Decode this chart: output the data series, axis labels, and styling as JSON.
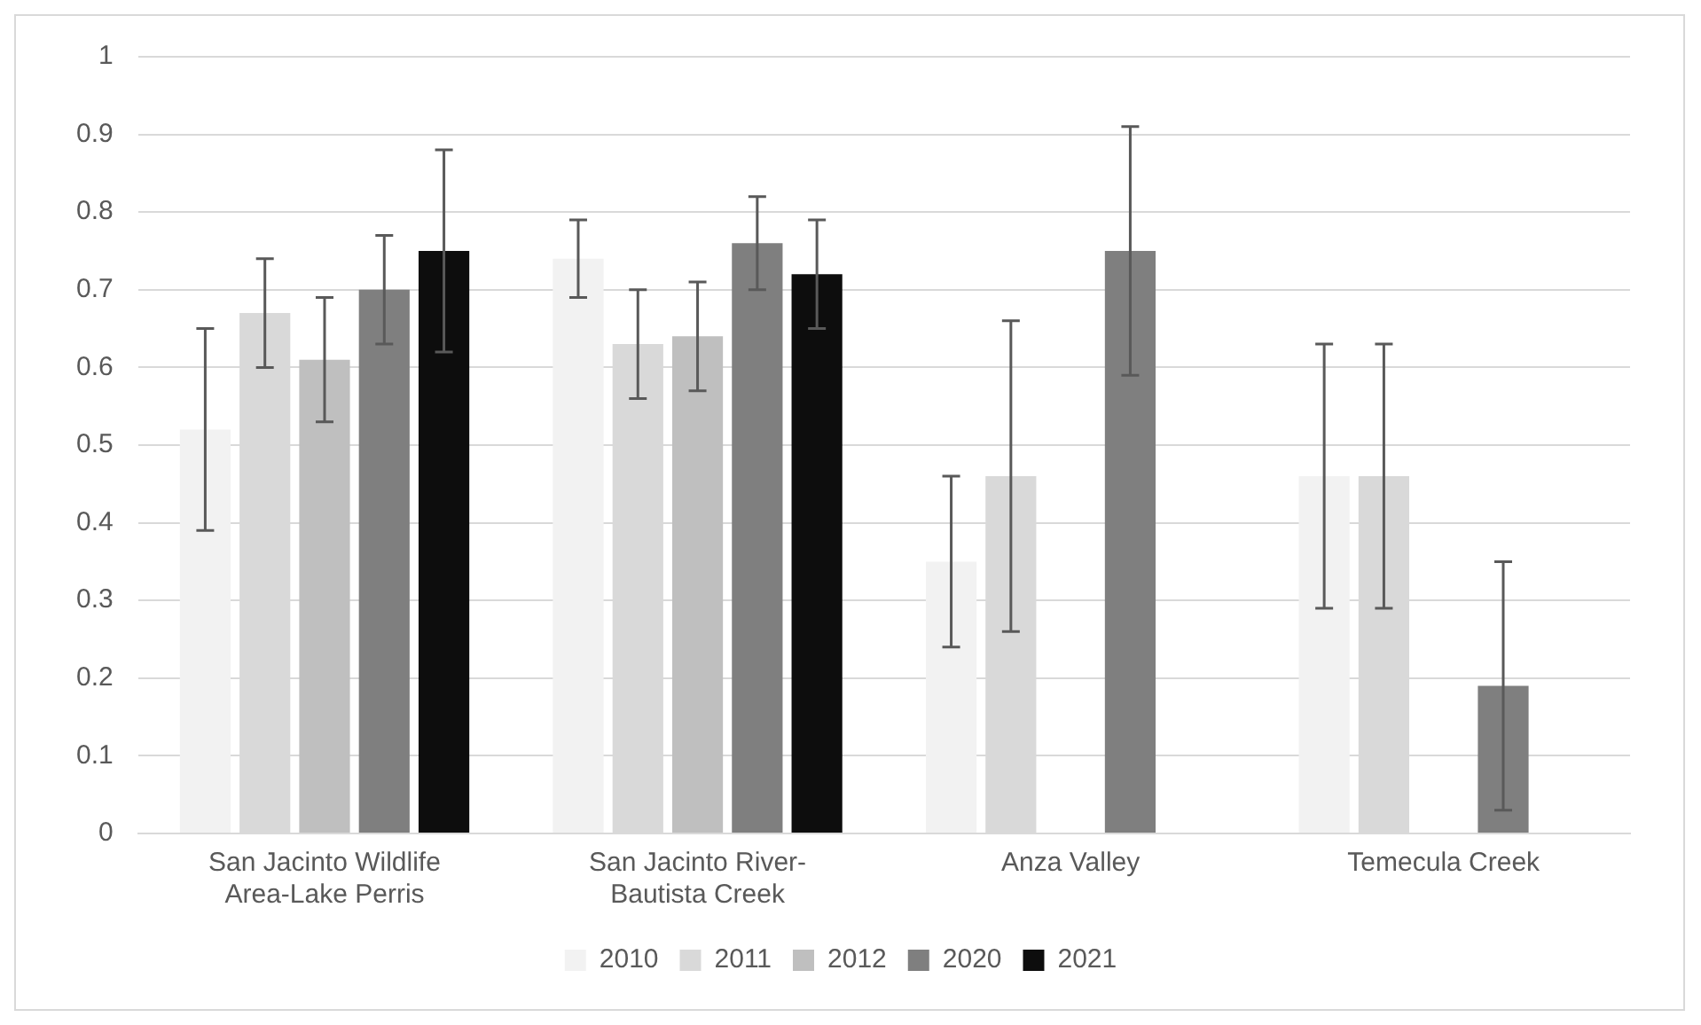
{
  "chart_data": {
    "type": "bar",
    "categories": [
      "San Jacinto Wildlife Area-Lake Perris",
      "San Jacinto River-Bautista Creek",
      "Anza Valley",
      "Temecula Creek"
    ],
    "series": [
      {
        "name": "2010",
        "color": "#f2f2f2",
        "values": [
          0.52,
          0.74,
          0.35,
          0.46
        ],
        "errors": [
          [
            0.39,
            0.65
          ],
          [
            0.69,
            0.79
          ],
          [
            0.24,
            0.46
          ],
          [
            0.29,
            0.63
          ]
        ]
      },
      {
        "name": "2011",
        "color": "#d9d9d9",
        "values": [
          0.67,
          0.63,
          0.46,
          0.46
        ],
        "errors": [
          [
            0.6,
            0.74
          ],
          [
            0.56,
            0.7
          ],
          [
            0.26,
            0.66
          ],
          [
            0.29,
            0.63
          ]
        ]
      },
      {
        "name": "2012",
        "color": "#bfbfbf",
        "values": [
          0.61,
          0.64,
          null,
          null
        ],
        "errors": [
          [
            0.53,
            0.69
          ],
          [
            0.57,
            0.71
          ],
          null,
          null
        ]
      },
      {
        "name": "2020",
        "color": "#7f7f7f",
        "values": [
          0.7,
          0.76,
          0.75,
          0.19
        ],
        "errors": [
          [
            0.63,
            0.77
          ],
          [
            0.7,
            0.82
          ],
          [
            0.59,
            0.91
          ],
          [
            0.03,
            0.35
          ]
        ]
      },
      {
        "name": "2021",
        "color": "#0d0d0d",
        "values": [
          0.75,
          0.72,
          null,
          null
        ],
        "errors": [
          [
            0.62,
            0.88
          ],
          [
            0.65,
            0.79
          ],
          null,
          null
        ]
      }
    ],
    "ylim": [
      0,
      1
    ],
    "yticks": [
      0,
      0.1,
      0.2,
      0.3,
      0.4,
      0.5,
      0.6,
      0.7,
      0.8,
      0.9,
      1
    ],
    "grid": "y",
    "legend": "bottom"
  }
}
